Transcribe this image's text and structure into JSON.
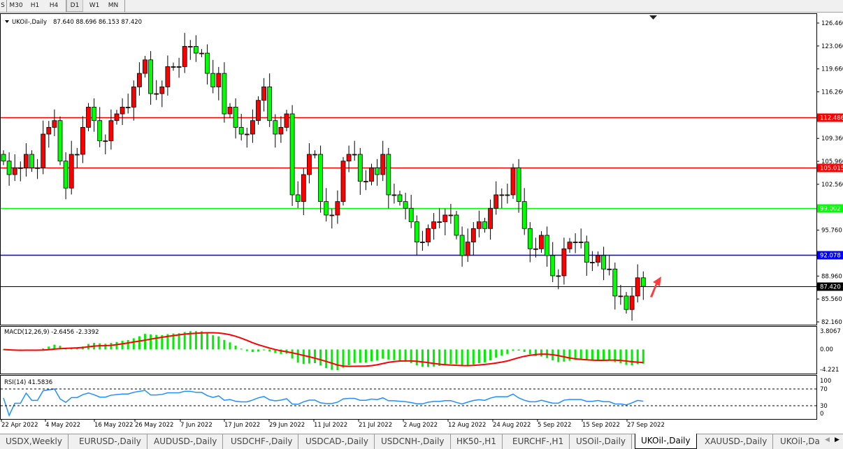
{
  "toolbar": {
    "timeframes": [
      "S",
      "M30",
      "H1",
      "H4",
      "D1",
      "W1",
      "MN"
    ],
    "active": "D1"
  },
  "chart": {
    "symbol_label": "UKOil-,Daily",
    "ohlc_label": "87.640 88.696 86.153 87.420",
    "price_ticks": [
      "126.460",
      "123.060",
      "119.660",
      "116.260",
      "109.360",
      "105.960",
      "102.560",
      "95.760",
      "88.960",
      "85.560",
      "82.160"
    ],
    "levels": [
      {
        "price": "112.486",
        "color": "#ff0000"
      },
      {
        "price": "105.015",
        "color": "#ff0000"
      },
      {
        "price": "99.002",
        "color": "#00ff00"
      },
      {
        "price": "92.078",
        "color": "#0000ff"
      },
      {
        "price": "87.420",
        "color": "#000000"
      }
    ],
    "up_color": "#ff0000",
    "down_color": "#00ff00",
    "date_labels": [
      "22 Apr 2022",
      "4 May 2022",
      "16 May 2022",
      "26 May 2022",
      "7 Jun 2022",
      "17 Jun 2022",
      "29 Jun 2022",
      "11 Jul 2022",
      "21 Jul 2022",
      "2 Aug 2022",
      "12 Aug 2022",
      "24 Aug 2022",
      "5 Sep 2022",
      "15 Sep 2022",
      "27 Sep 2022"
    ]
  },
  "chart_data": {
    "type": "candlestick",
    "ylim": [
      82.16,
      126.46
    ],
    "closes": [
      106,
      104,
      105,
      105,
      107,
      105,
      105,
      110,
      111,
      112,
      106,
      102,
      107,
      107,
      111,
      114,
      112,
      109,
      109,
      112,
      113,
      114,
      114,
      117,
      119,
      121,
      116,
      116,
      117,
      120,
      120,
      120,
      123,
      123,
      122,
      122,
      119,
      117,
      119,
      113,
      114,
      111,
      110,
      110,
      112,
      115,
      117,
      112,
      110,
      111,
      113,
      101,
      100,
      104,
      107,
      107,
      100,
      98,
      98,
      100,
      106,
      107,
      107,
      103,
      103,
      105,
      104,
      107,
      101,
      101,
      100,
      99,
      97,
      94,
      94,
      96,
      97,
      97,
      98,
      98,
      95,
      92,
      94,
      96,
      97,
      96,
      99,
      101,
      101,
      101,
      105,
      100,
      96,
      93,
      93,
      95,
      92,
      89,
      89,
      93,
      94,
      94,
      94,
      91,
      91,
      92,
      90,
      90,
      86,
      86,
      84,
      86,
      88.7,
      87.42
    ]
  },
  "macd": {
    "label": "MACD(12,26,9) -2.6456 -2.3392",
    "ticks": [
      "3.8067",
      "0.00",
      "-4.221"
    ],
    "ylim": [
      -4.221,
      3.8067
    ]
  },
  "rsi": {
    "label": "RSI(14) 41.5836",
    "ticks": [
      "100",
      "70",
      "30",
      "0"
    ]
  },
  "tabs": [
    {
      "label": "USDX,Weekly"
    },
    {
      "label": "EURUSD-,Daily"
    },
    {
      "label": "AUDUSD-,Daily"
    },
    {
      "label": "USDCHF-,Daily"
    },
    {
      "label": "USDCAD-,Daily"
    },
    {
      "label": "USDCNH-,Daily"
    },
    {
      "label": "HK50-,H1"
    },
    {
      "label": "EURCHF-,H1"
    },
    {
      "label": "USOil-,Daily"
    },
    {
      "label": "UKOil-,Daily",
      "active": true
    },
    {
      "label": "XAUUSD-,Daily"
    },
    {
      "label": "UKOil-,Da"
    }
  ]
}
